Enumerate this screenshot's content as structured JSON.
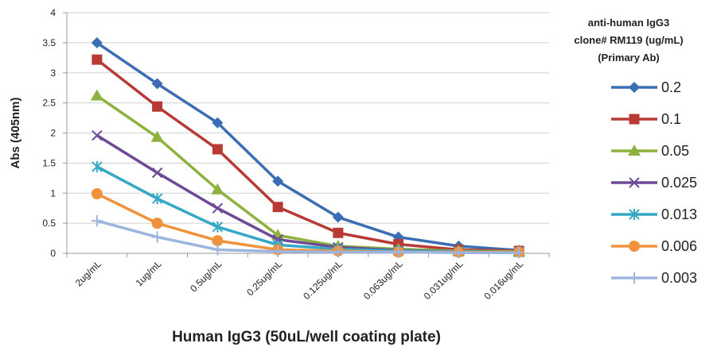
{
  "chart_data": {
    "type": "line",
    "title": "",
    "xlabel": "Human IgG3 (50uL/well coating plate)",
    "ylabel": "Abs (405nm)",
    "ylim": [
      0,
      4
    ],
    "yticks": [
      "0",
      "0.5",
      "1",
      "1.5",
      "2",
      "2.5",
      "3",
      "3.5",
      "4"
    ],
    "grid": "horizontal",
    "legend_position": "right",
    "legend_title": [
      "anti-human IgG3",
      "clone# RM119 (ug/mL)",
      "(Primary Ab)"
    ],
    "categories": [
      "2ug/mL",
      "1ug/mL",
      "0.5ug/mL",
      "0.25ug/mL",
      "0.125ug/mL",
      "0.063ug/mL",
      "0.031ug/mL",
      "0.016ug/mL"
    ],
    "series": [
      {
        "name": "0.2",
        "color": "#3B6DB5",
        "marker": "diamond",
        "values": [
          3.5,
          2.82,
          2.17,
          1.2,
          0.6,
          0.27,
          0.12,
          0.05
        ]
      },
      {
        "name": "0.1",
        "color": "#B83A35",
        "marker": "square",
        "values": [
          3.22,
          2.44,
          1.73,
          0.77,
          0.34,
          0.15,
          0.06,
          0.04
        ]
      },
      {
        "name": "0.05",
        "color": "#8DB33E",
        "marker": "triangle",
        "values": [
          2.62,
          1.93,
          1.06,
          0.3,
          0.12,
          0.07,
          0.04,
          0.03
        ]
      },
      {
        "name": "0.025",
        "color": "#6D4A96",
        "marker": "x",
        "values": [
          1.96,
          1.34,
          0.75,
          0.23,
          0.1,
          0.05,
          0.03,
          0.02
        ]
      },
      {
        "name": "0.013",
        "color": "#35A8C3",
        "marker": "star",
        "values": [
          1.44,
          0.91,
          0.44,
          0.14,
          0.07,
          0.04,
          0.03,
          0.02
        ]
      },
      {
        "name": "0.006",
        "color": "#F0923B",
        "marker": "circle",
        "values": [
          0.99,
          0.5,
          0.21,
          0.06,
          0.04,
          0.02,
          0.02,
          0.02
        ]
      },
      {
        "name": "0.003",
        "color": "#9DB5DE",
        "marker": "plus",
        "values": [
          0.54,
          0.27,
          0.06,
          0.03,
          0.02,
          0.02,
          0.01,
          0.01
        ]
      }
    ]
  }
}
